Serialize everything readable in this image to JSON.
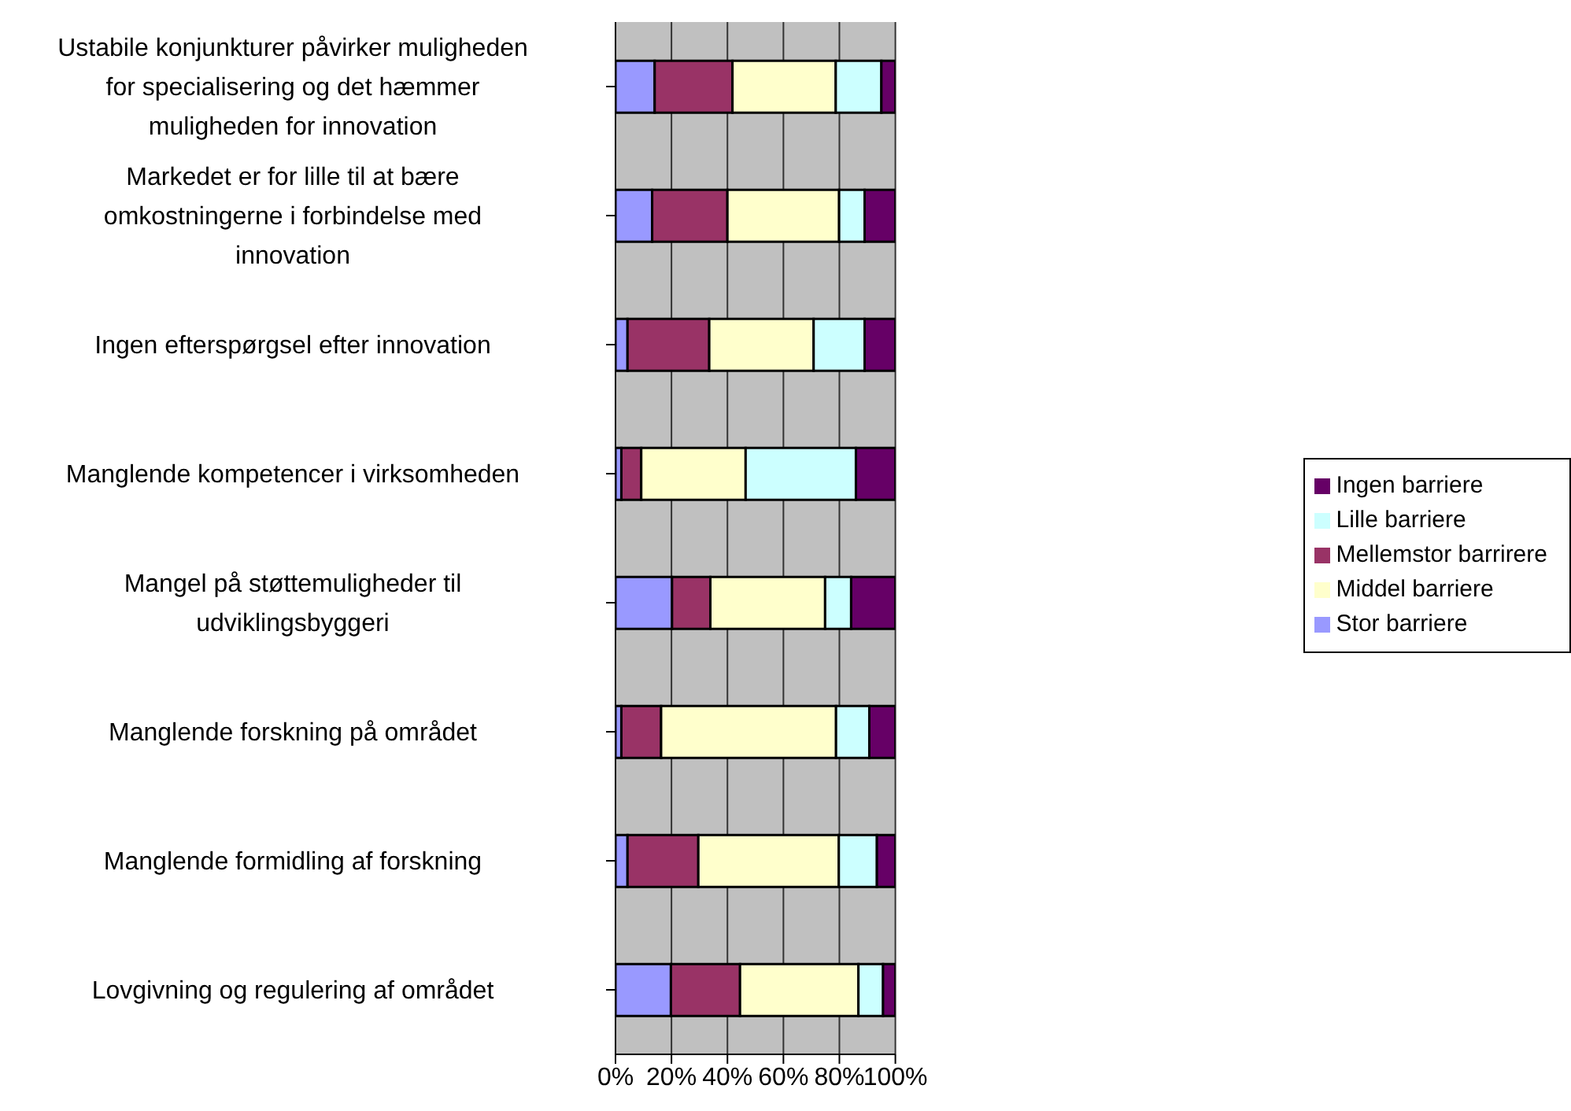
{
  "chart_data": {
    "type": "bar",
    "orientation": "horizontal",
    "stacked": true,
    "categories": [
      "Ustabile konjunkturer påvirker muligheden for specialisering og det hæmmer muligheden for innovation",
      "Markedet er for lille til at bære omkostningerne i forbindelse med innovation",
      "Ingen efterspørgsel efter innovation",
      "Manglende kompetencer i virksomheden",
      "Mangel på støttemuligheder til udviklingsbyggeri",
      "Manglende forskning på området",
      "Manglende formidling af forskning",
      "Lovgivning og regulering af området"
    ],
    "series": [
      {
        "name": "Stor barriere",
        "color": "#9999ff",
        "values": [
          14.0,
          13.1,
          4.3,
          2.1,
          20.2,
          2.1,
          4.3,
          19.8
        ]
      },
      {
        "name": "Mellemstor barrirere",
        "color": "#993366",
        "values": [
          27.8,
          26.9,
          29.2,
          7.1,
          13.7,
          14.2,
          25.3,
          24.7
        ]
      },
      {
        "name": "Middel barriere",
        "color": "#ffffcc",
        "values": [
          36.9,
          39.9,
          37.3,
          37.3,
          41.0,
          62.5,
          50.2,
          42.3
        ]
      },
      {
        "name": "Lille barriere",
        "color": "#ccffff",
        "values": [
          16.3,
          9.1,
          18.2,
          39.4,
          9.3,
          11.9,
          13.6,
          8.8
        ]
      },
      {
        "name": "Ingen barriere",
        "color": "#660066",
        "values": [
          5.0,
          11.0,
          11.0,
          14.1,
          15.8,
          9.3,
          6.6,
          4.4
        ]
      }
    ],
    "xlim": [
      0,
      100
    ],
    "xticks": [
      {
        "value": 0,
        "label": "0%"
      },
      {
        "value": 20,
        "label": "20%"
      },
      {
        "value": 40,
        "label": "40%"
      },
      {
        "value": 60,
        "label": "60%"
      },
      {
        "value": 80,
        "label": "80%"
      },
      {
        "value": 100,
        "label": "100%"
      }
    ],
    "grid": "x",
    "legend": "right"
  }
}
